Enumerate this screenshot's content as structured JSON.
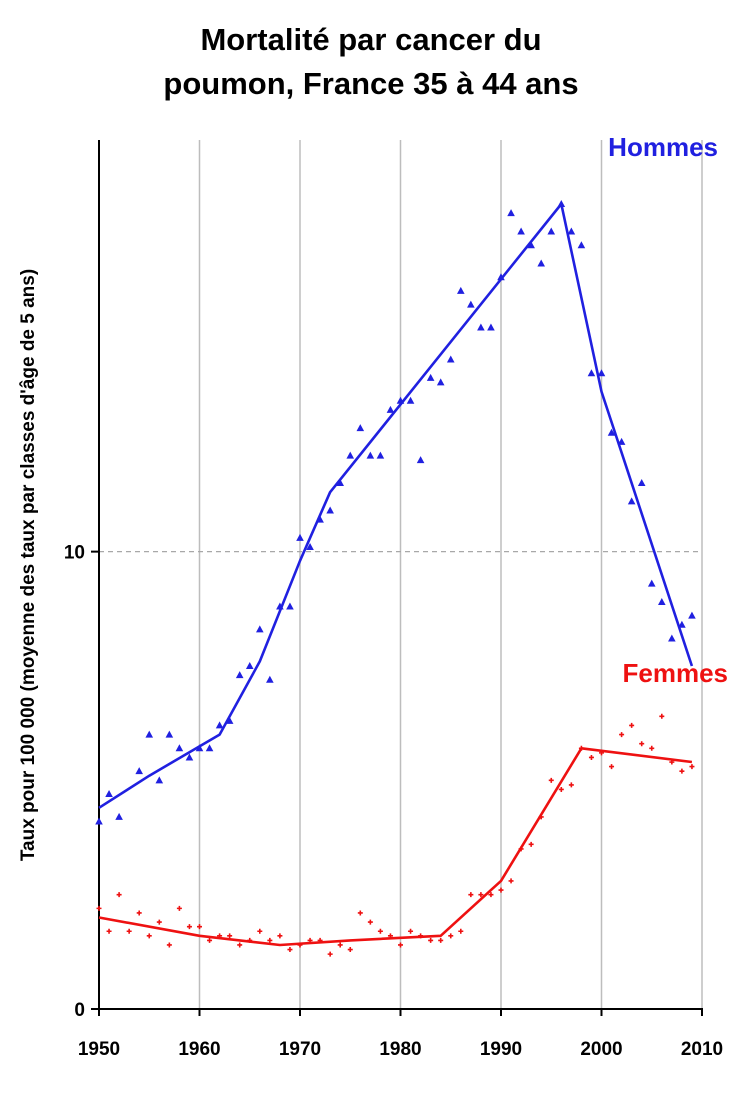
{
  "chart_data": {
    "type": "line",
    "title_line1": "Mortalité par cancer du",
    "title_line2": "poumon, France 35 à 44 ans",
    "ylabel": "Taux pour 100 000 (moyenne des taux par classes d'âge de 5 ans)",
    "xlabel": "",
    "xlim": [
      1950,
      2010
    ],
    "ylim": [
      0,
      19
    ],
    "x_ticks": [
      "1950",
      "1960",
      "1970",
      "1980",
      "1990",
      "2000",
      "2010"
    ],
    "y_ticks": [
      {
        "value": 0,
        "label": "0"
      },
      {
        "value": 10,
        "label": "10"
      }
    ],
    "grid": "vertical lines at each decade, dashed horizontal line at 10",
    "series": [
      {
        "name": "Hommes",
        "color": "#2020e0",
        "marker": "triangle",
        "points": [
          [
            1950,
            4.1
          ],
          [
            1951,
            4.7
          ],
          [
            1952,
            4.2
          ],
          [
            1954,
            5.2
          ],
          [
            1955,
            6.0
          ],
          [
            1956,
            5.0
          ],
          [
            1957,
            6.0
          ],
          [
            1958,
            5.7
          ],
          [
            1959,
            5.5
          ],
          [
            1960,
            5.7
          ],
          [
            1961,
            5.7
          ],
          [
            1962,
            6.2
          ],
          [
            1963,
            6.3
          ],
          [
            1964,
            7.3
          ],
          [
            1965,
            7.5
          ],
          [
            1966,
            8.3
          ],
          [
            1967,
            7.2
          ],
          [
            1968,
            8.8
          ],
          [
            1969,
            8.8
          ],
          [
            1970,
            10.3
          ],
          [
            1971,
            10.1
          ],
          [
            1972,
            10.7
          ],
          [
            1973,
            10.9
          ],
          [
            1974,
            11.5
          ],
          [
            1975,
            12.1
          ],
          [
            1976,
            12.7
          ],
          [
            1977,
            12.1
          ],
          [
            1978,
            12.1
          ],
          [
            1979,
            13.1
          ],
          [
            1980,
            13.3
          ],
          [
            1981,
            13.3
          ],
          [
            1982,
            12.0
          ],
          [
            1983,
            13.8
          ],
          [
            1984,
            13.7
          ],
          [
            1985,
            14.2
          ],
          [
            1986,
            15.7
          ],
          [
            1987,
            15.4
          ],
          [
            1988,
            14.9
          ],
          [
            1989,
            14.9
          ],
          [
            1990,
            16.0
          ],
          [
            1991,
            17.4
          ],
          [
            1992,
            17.0
          ],
          [
            1993,
            16.7
          ],
          [
            1994,
            16.3
          ],
          [
            1995,
            17.0
          ],
          [
            1996,
            17.6
          ],
          [
            1997,
            17.0
          ],
          [
            1998,
            16.7
          ],
          [
            1999,
            13.9
          ],
          [
            2000,
            13.9
          ],
          [
            2001,
            12.6
          ],
          [
            2002,
            12.4
          ],
          [
            2003,
            11.1
          ],
          [
            2004,
            11.5
          ],
          [
            2005,
            9.3
          ],
          [
            2006,
            8.9
          ],
          [
            2007,
            8.1
          ],
          [
            2008,
            8.4
          ],
          [
            2009,
            8.6
          ]
        ],
        "trend": [
          [
            1950,
            4.4
          ],
          [
            1955,
            5.1
          ],
          [
            1962,
            6.0
          ],
          [
            1966,
            7.6
          ],
          [
            1970,
            9.8
          ],
          [
            1973,
            11.3
          ],
          [
            1996,
            17.6
          ],
          [
            2000,
            13.5
          ],
          [
            2009,
            7.5
          ]
        ]
      },
      {
        "name": "Femmes",
        "color": "#ee1111",
        "marker": "plus",
        "points": [
          [
            1950,
            2.2
          ],
          [
            1951,
            1.7
          ],
          [
            1952,
            2.5
          ],
          [
            1953,
            1.7
          ],
          [
            1954,
            2.1
          ],
          [
            1955,
            1.6
          ],
          [
            1956,
            1.9
          ],
          [
            1957,
            1.4
          ],
          [
            1958,
            2.2
          ],
          [
            1959,
            1.8
          ],
          [
            1960,
            1.8
          ],
          [
            1961,
            1.5
          ],
          [
            1962,
            1.6
          ],
          [
            1963,
            1.6
          ],
          [
            1964,
            1.4
          ],
          [
            1965,
            1.5
          ],
          [
            1966,
            1.7
          ],
          [
            1967,
            1.5
          ],
          [
            1968,
            1.6
          ],
          [
            1969,
            1.3
          ],
          [
            1970,
            1.4
          ],
          [
            1971,
            1.5
          ],
          [
            1972,
            1.5
          ],
          [
            1973,
            1.2
          ],
          [
            1974,
            1.4
          ],
          [
            1975,
            1.3
          ],
          [
            1976,
            2.1
          ],
          [
            1977,
            1.9
          ],
          [
            1978,
            1.7
          ],
          [
            1979,
            1.6
          ],
          [
            1980,
            1.4
          ],
          [
            1981,
            1.7
          ],
          [
            1982,
            1.6
          ],
          [
            1983,
            1.5
          ],
          [
            1984,
            1.5
          ],
          [
            1985,
            1.6
          ],
          [
            1986,
            1.7
          ],
          [
            1987,
            2.5
          ],
          [
            1988,
            2.5
          ],
          [
            1989,
            2.5
          ],
          [
            1990,
            2.6
          ],
          [
            1991,
            2.8
          ],
          [
            1992,
            3.5
          ],
          [
            1993,
            3.6
          ],
          [
            1994,
            4.2
          ],
          [
            1995,
            5.0
          ],
          [
            1996,
            4.8
          ],
          [
            1997,
            4.9
          ],
          [
            1998,
            5.7
          ],
          [
            1999,
            5.5
          ],
          [
            2000,
            5.6
          ],
          [
            2001,
            5.3
          ],
          [
            2002,
            6.0
          ],
          [
            2003,
            6.2
          ],
          [
            2004,
            5.8
          ],
          [
            2005,
            5.7
          ],
          [
            2006,
            6.4
          ],
          [
            2007,
            5.4
          ],
          [
            2008,
            5.2
          ],
          [
            2009,
            5.3
          ]
        ],
        "trend": [
          [
            1950,
            2.0
          ],
          [
            1960,
            1.6
          ],
          [
            1968,
            1.4
          ],
          [
            1975,
            1.5
          ],
          [
            1984,
            1.6
          ],
          [
            1990,
            2.8
          ],
          [
            1998,
            5.7
          ],
          [
            2009,
            5.4
          ]
        ]
      }
    ]
  }
}
